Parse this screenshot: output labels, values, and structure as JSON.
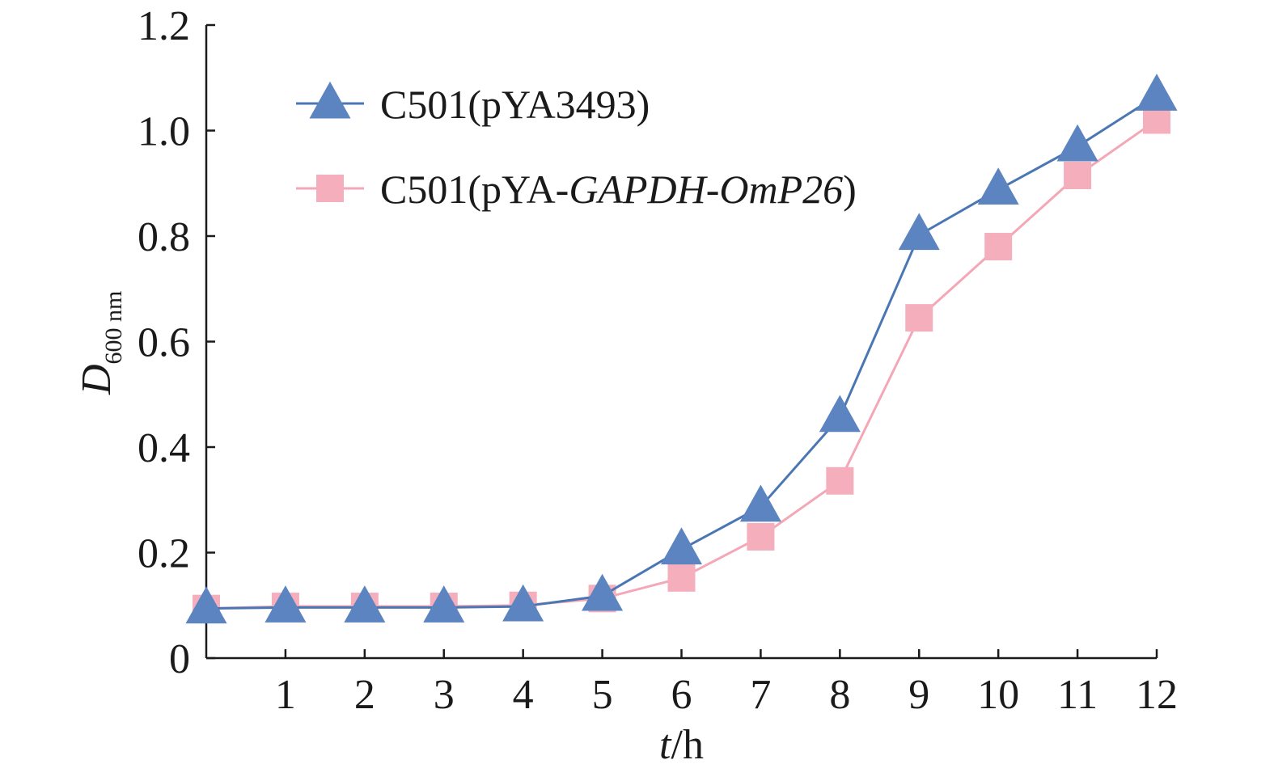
{
  "chart_data": {
    "type": "line",
    "title": "",
    "xlabel": {
      "italic": "t",
      "rest": "/h"
    },
    "ylabel": {
      "main": "D",
      "sub": "600 nm"
    },
    "x": [
      0,
      1,
      2,
      3,
      4,
      5,
      6,
      7,
      8,
      9,
      10,
      11,
      12
    ],
    "x_tick_labels": [
      "1",
      "2",
      "3",
      "4",
      "5",
      "6",
      "7",
      "8",
      "9",
      "10",
      "11",
      "12"
    ],
    "y_tick_labels": [
      "0",
      "0.2",
      "0.4",
      "0.6",
      "0.8",
      "1.0",
      "1.2"
    ],
    "xlim": [
      0,
      12
    ],
    "ylim": [
      0,
      1.2
    ],
    "grid": false,
    "legend_position": "top-left",
    "series": [
      {
        "name": "C501(pYA3493)",
        "name_parts": [
          {
            "text": "C501(pYA3493)",
            "italic": false
          }
        ],
        "marker": "triangle",
        "color": "#4a77b4",
        "marker_color": "#5b84c0",
        "values": [
          0.094,
          0.096,
          0.096,
          0.096,
          0.098,
          0.118,
          0.206,
          0.287,
          0.457,
          0.802,
          0.888,
          0.97,
          1.066
        ]
      },
      {
        "name": "C501(pYA-GAPDH-OmP26)",
        "name_parts": [
          {
            "text": "C501(pYA-",
            "italic": false
          },
          {
            "text": "GAPDH",
            "italic": true
          },
          {
            "text": "-",
            "italic": false
          },
          {
            "text": "OmP26",
            "italic": true
          },
          {
            "text": ")",
            "italic": false
          }
        ],
        "marker": "square",
        "color": "#f4a7b6",
        "marker_color": "#f4aebc",
        "values": [
          0.094,
          0.098,
          0.098,
          0.098,
          0.1,
          0.113,
          0.152,
          0.23,
          0.336,
          0.645,
          0.78,
          0.915,
          1.02
        ]
      }
    ]
  }
}
